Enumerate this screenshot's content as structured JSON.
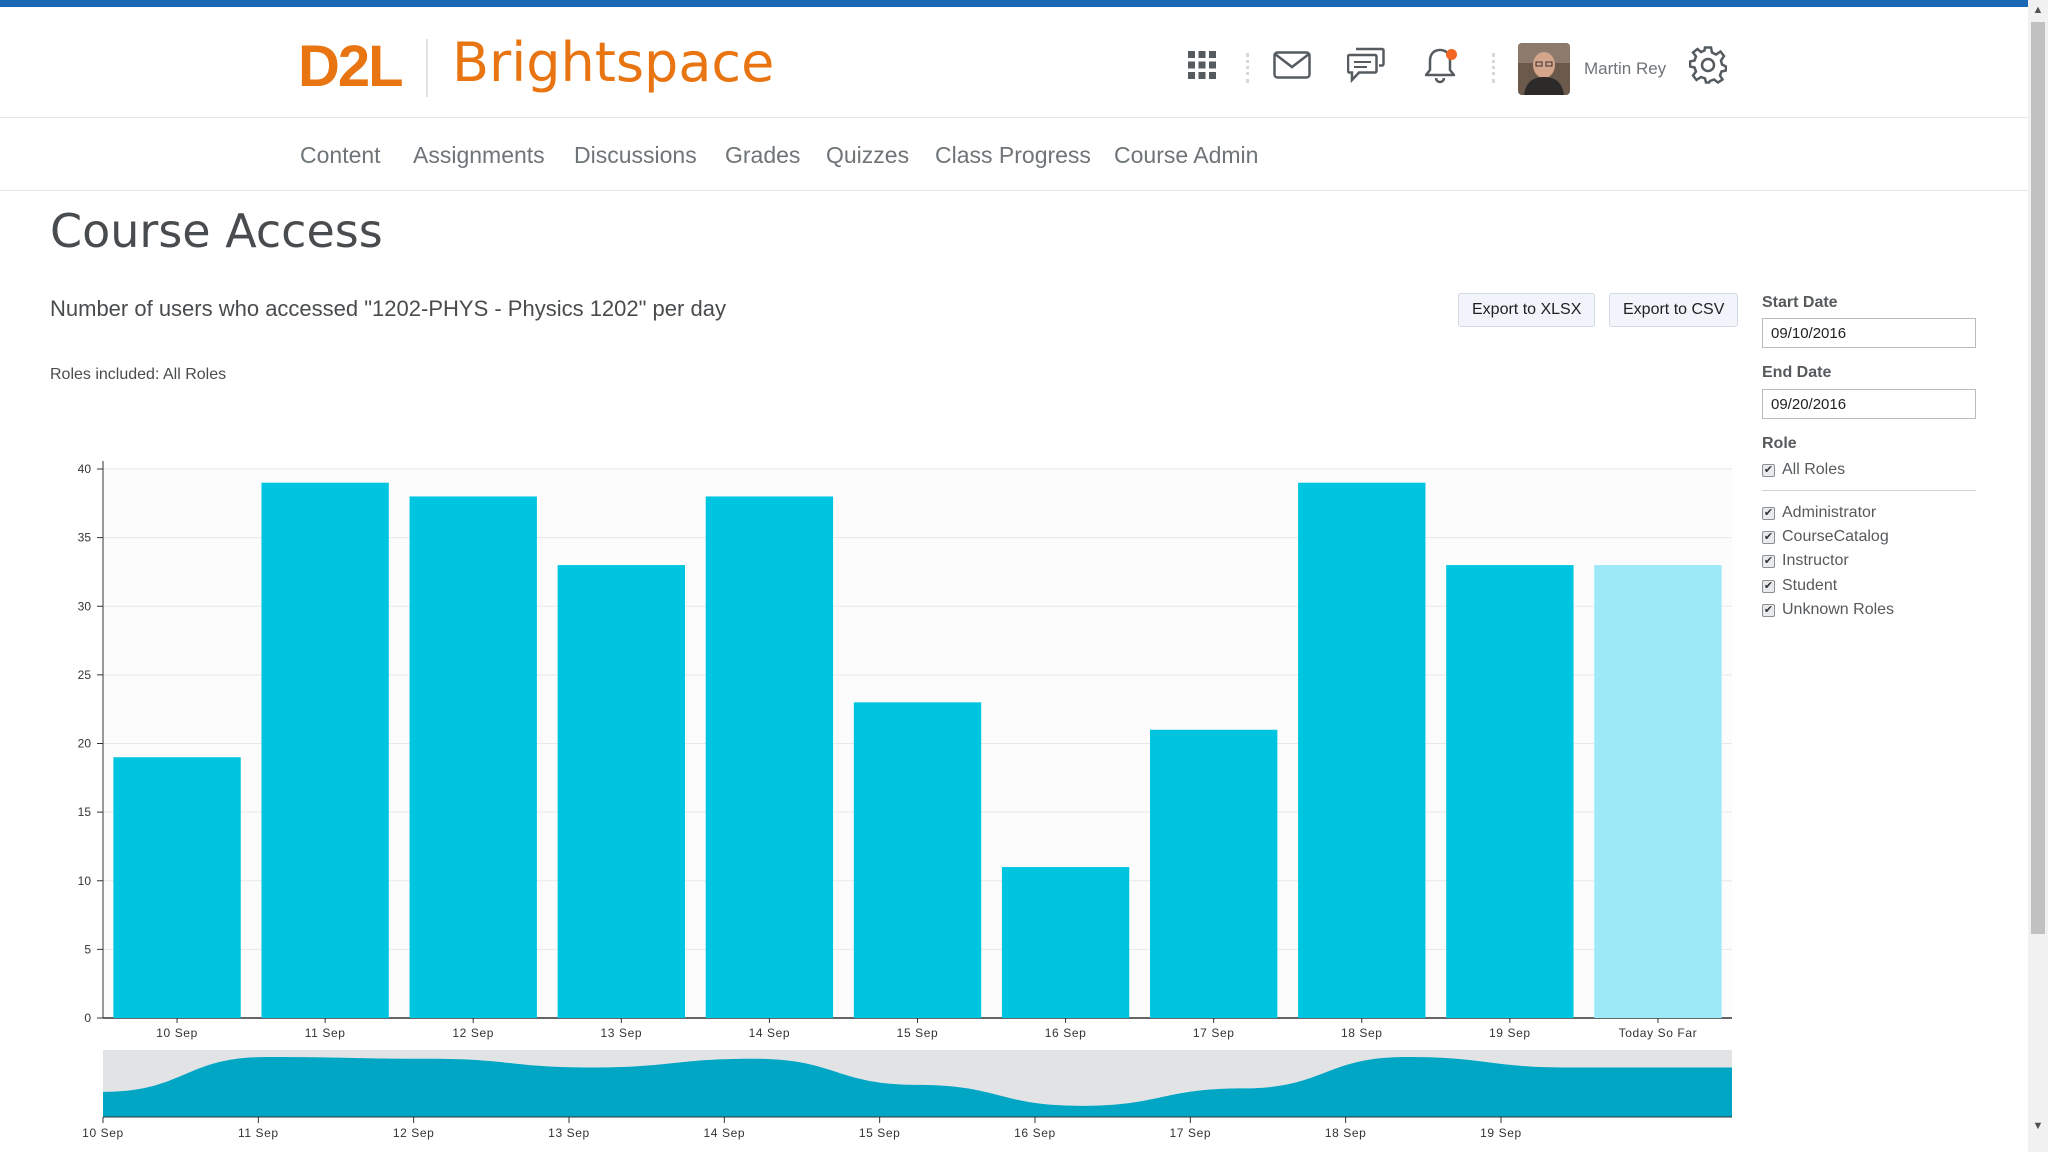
{
  "header": {
    "logo_d2l": "D2L",
    "logo_product": "Brightspace",
    "user_name": "Martin Rey",
    "icons": [
      "waffle-icon",
      "mail-icon",
      "chat-icon",
      "bell-icon",
      "gear-icon"
    ],
    "notification_color": "#f26522"
  },
  "nav": {
    "items": [
      "Content",
      "Assignments",
      "Discussions",
      "Grades",
      "Quizzes",
      "Class Progress",
      "Course Admin"
    ]
  },
  "page": {
    "title": "Course Access",
    "subtitle": "Number of users who accessed \"1202-PHYS - Physics 1202\" per day",
    "roles_included": "Roles included: All Roles",
    "export_xlsx": "Export to XLSX",
    "export_csv": "Export to CSV"
  },
  "filters": {
    "start_label": "Start Date",
    "start_value": "09/10/2016",
    "end_label": "End Date",
    "end_value": "09/20/2016",
    "role_label": "Role",
    "all_roles": "All Roles",
    "roles": [
      "Administrator",
      "CourseCatalog",
      "Instructor",
      "Student",
      "Unknown Roles"
    ]
  },
  "chart_data": {
    "type": "bar",
    "categories": [
      "10 Sep",
      "11 Sep",
      "12 Sep",
      "13 Sep",
      "14 Sep",
      "15 Sep",
      "16 Sep",
      "17 Sep",
      "18 Sep",
      "19 Sep",
      "Today So Far"
    ],
    "values": [
      19,
      39,
      38,
      33,
      38,
      23,
      11,
      21,
      39,
      33,
      33
    ],
    "yticks": [
      0,
      5,
      10,
      15,
      20,
      25,
      30,
      35,
      40
    ],
    "ylim": [
      0,
      40
    ],
    "grid": true,
    "bar_color": "#00c5e1",
    "today_color": "#9ee9f8",
    "navigator": {
      "labels": [
        "10 Sep",
        "11 Sep",
        "12 Sep",
        "13 Sep",
        "14 Sep",
        "15 Sep",
        "16 Sep",
        "17 Sep",
        "18 Sep",
        "19 Sep"
      ],
      "fill_color": "#00a6c3",
      "background_color": "#e1e3e5"
    }
  }
}
